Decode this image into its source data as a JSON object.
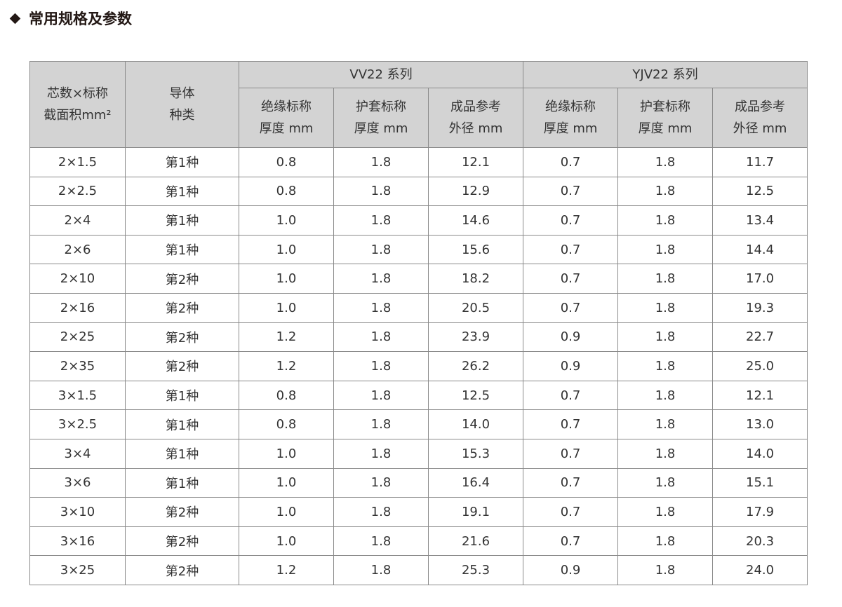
{
  "title": "常用规格及参数",
  "table": {
    "col_spec": "芯数×标称\n截面积mm²",
    "col_conductor": "导体\n种类",
    "groups": [
      "VV22 系列",
      "YJV22 系列"
    ],
    "subheaders": [
      "绝缘标称\n厚度 mm",
      "护套标称\n厚度 mm",
      "成品参考\n外径 mm",
      "绝缘标称\n厚度 mm",
      "护套标称\n厚度 mm",
      "成品参考\n外径 mm"
    ],
    "rows": [
      [
        "2×1.5",
        "第1种",
        "0.8",
        "1.8",
        "12.1",
        "0.7",
        "1.8",
        "11.7"
      ],
      [
        "2×2.5",
        "第1种",
        "0.8",
        "1.8",
        "12.9",
        "0.7",
        "1.8",
        "12.5"
      ],
      [
        "2×4",
        "第1种",
        "1.0",
        "1.8",
        "14.6",
        "0.7",
        "1.8",
        "13.4"
      ],
      [
        "2×6",
        "第1种",
        "1.0",
        "1.8",
        "15.6",
        "0.7",
        "1.8",
        "14.4"
      ],
      [
        "2×10",
        "第2种",
        "1.0",
        "1.8",
        "18.2",
        "0.7",
        "1.8",
        "17.0"
      ],
      [
        "2×16",
        "第2种",
        "1.0",
        "1.8",
        "20.5",
        "0.7",
        "1.8",
        "19.3"
      ],
      [
        "2×25",
        "第2种",
        "1.2",
        "1.8",
        "23.9",
        "0.9",
        "1.8",
        "22.7"
      ],
      [
        "2×35",
        "第2种",
        "1.2",
        "1.8",
        "26.2",
        "0.9",
        "1.8",
        "25.0"
      ],
      [
        "3×1.5",
        "第1种",
        "0.8",
        "1.8",
        "12.5",
        "0.7",
        "1.8",
        "12.1"
      ],
      [
        "3×2.5",
        "第1种",
        "0.8",
        "1.8",
        "14.0",
        "0.7",
        "1.8",
        "13.0"
      ],
      [
        "3×4",
        "第1种",
        "1.0",
        "1.8",
        "15.3",
        "0.7",
        "1.8",
        "14.0"
      ],
      [
        "3×6",
        "第1种",
        "1.0",
        "1.8",
        "16.4",
        "0.7",
        "1.8",
        "15.1"
      ],
      [
        "3×10",
        "第2种",
        "1.0",
        "1.8",
        "19.1",
        "0.7",
        "1.8",
        "17.9"
      ],
      [
        "3×16",
        "第2种",
        "1.0",
        "1.8",
        "21.6",
        "0.7",
        "1.8",
        "20.3"
      ],
      [
        "3×25",
        "第2种",
        "1.2",
        "1.8",
        "25.3",
        "0.9",
        "1.8",
        "24.0"
      ]
    ]
  }
}
